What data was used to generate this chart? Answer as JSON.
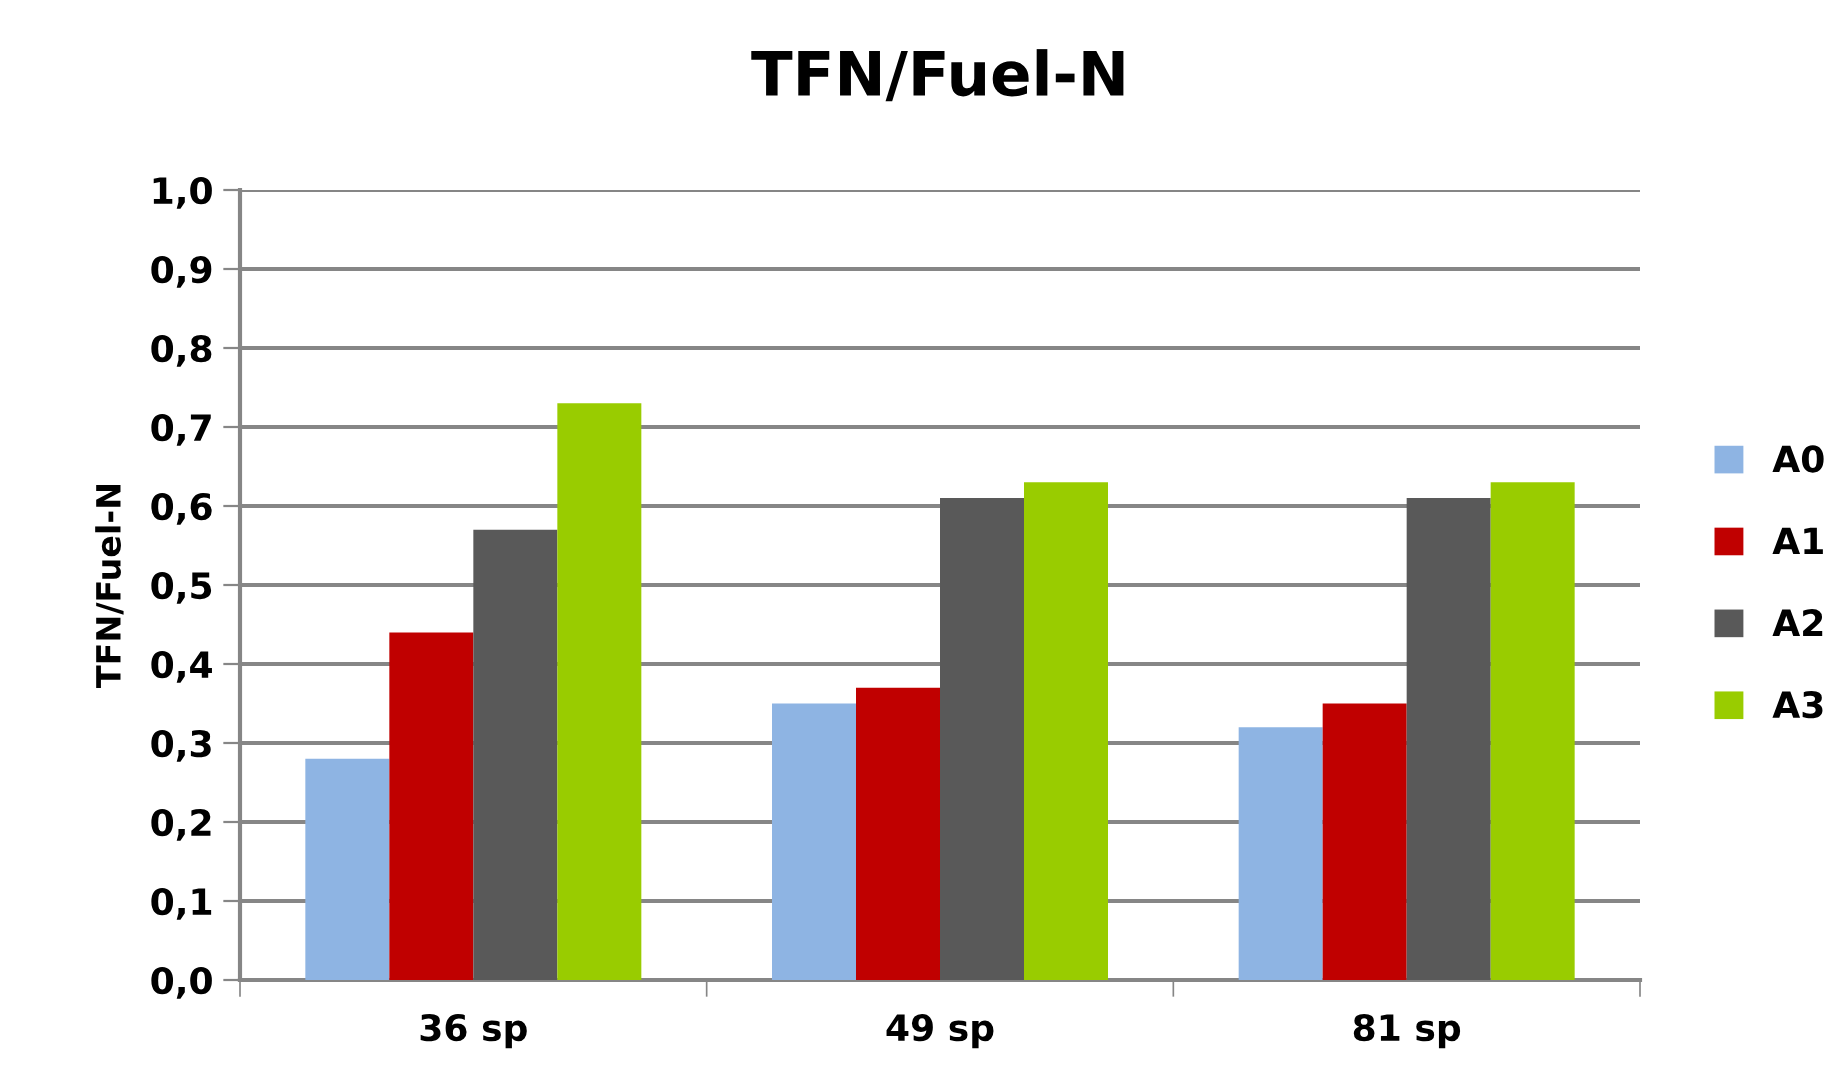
{
  "chart_data": {
    "type": "bar",
    "title": "TFN/Fuel-N",
    "ylabel": "TFN/Fuel-N",
    "categories": [
      "36 sp",
      "49 sp",
      "81 sp"
    ],
    "series": [
      {
        "name": "A0",
        "color": "#8eb4e3",
        "values": [
          0.28,
          0.35,
          0.32
        ]
      },
      {
        "name": "A1",
        "color": "#c00000",
        "values": [
          0.44,
          0.37,
          0.35
        ]
      },
      {
        "name": "A2",
        "color": "#595959",
        "values": [
          0.57,
          0.61,
          0.61
        ]
      },
      {
        "name": "A3",
        "color": "#99cc00",
        "values": [
          0.73,
          0.63,
          0.63
        ]
      }
    ],
    "ylim": [
      0,
      1.0
    ],
    "yticks": [
      {
        "value": 0,
        "label": "0,0"
      },
      {
        "value": 0.1,
        "label": "0,1"
      },
      {
        "value": 0.2,
        "label": "0,2"
      },
      {
        "value": 0.3,
        "label": "0,3"
      },
      {
        "value": 0.4,
        "label": "0,4"
      },
      {
        "value": 0.5,
        "label": "0,5"
      },
      {
        "value": 0.6,
        "label": "0,6"
      },
      {
        "value": 0.7,
        "label": "0,7"
      },
      {
        "value": 0.8,
        "label": "0,8"
      },
      {
        "value": 0.9,
        "label": "0,9"
      },
      {
        "value": 1.0,
        "label": "1,0"
      }
    ],
    "grid": "y",
    "legend": "right"
  }
}
